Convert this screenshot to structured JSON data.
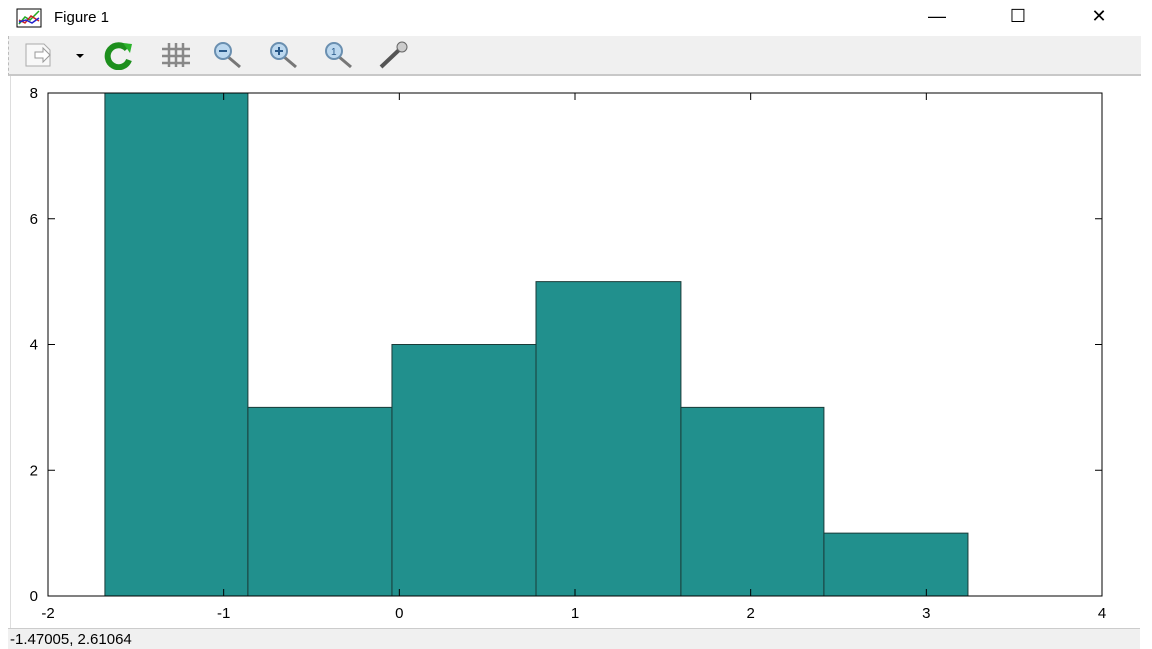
{
  "window": {
    "title": "Figure 1",
    "minimize": "—",
    "maximize": "☐",
    "close": "✕"
  },
  "toolbar": {
    "icons": [
      "export-icon",
      "dropdown-arrow-icon",
      "refresh-icon",
      "grid-icon",
      "zoom-out-icon",
      "zoom-in-icon",
      "zoom-reset-icon",
      "properties-wrench-icon"
    ]
  },
  "status": {
    "coordinates": "-1.47005,  2.61064"
  },
  "chart_data": {
    "type": "bar",
    "subtype": "histogram",
    "bin_edges": [
      -1.676,
      -0.862,
      -0.042,
      0.778,
      1.603,
      2.417,
      3.237
    ],
    "values": [
      8,
      3,
      4,
      5,
      3,
      1
    ],
    "xlim": [
      -2,
      4
    ],
    "ylim": [
      0,
      8
    ],
    "xticks": [
      "-2",
      "-1",
      "0",
      "1",
      "2",
      "3",
      "4"
    ],
    "yticks": [
      "0",
      "2",
      "4",
      "6",
      "8"
    ],
    "grid": false,
    "bar_color": "#21908d",
    "edge_color": "#1a3b38",
    "title": "",
    "xlabel": "",
    "ylabel": ""
  }
}
